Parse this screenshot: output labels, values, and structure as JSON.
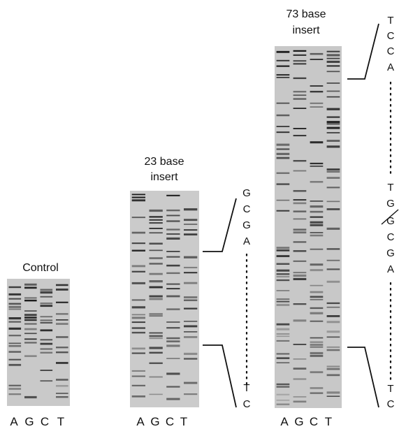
{
  "panels": [
    {
      "id": "control",
      "title_lines": [
        "Control"
      ],
      "lane_labels": [
        "A",
        "G",
        "C",
        "T"
      ],
      "sequence_top": [],
      "sequence_bottom": []
    },
    {
      "id": "insert23",
      "title_lines": [
        "23 base",
        "insert"
      ],
      "lane_labels": [
        "A",
        "G",
        "C",
        "T"
      ],
      "sequence_top": [
        "G",
        "C",
        "G",
        "A"
      ],
      "sequence_bottom": [
        "T",
        "C"
      ]
    },
    {
      "id": "insert73",
      "title_lines": [
        "73 base",
        "insert"
      ],
      "lane_labels": [
        "A",
        "G",
        "C",
        "T"
      ],
      "sequence_top": [
        "T",
        "C",
        "C",
        "A"
      ],
      "sequence_middle": [
        "T",
        "G",
        "G",
        "C",
        "G",
        "A"
      ],
      "sequence_bottom": [
        "T",
        "C"
      ]
    }
  ]
}
